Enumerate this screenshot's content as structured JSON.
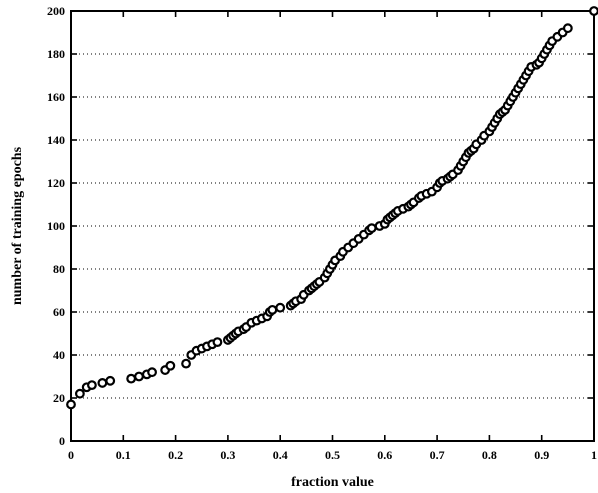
{
  "chart_data": {
    "type": "scatter",
    "title": "",
    "xlabel": "fraction value",
    "ylabel": "number of training epochs",
    "xlim": [
      0,
      1
    ],
    "ylim": [
      0,
      200
    ],
    "xticks": [
      0,
      0.1,
      0.2,
      0.3,
      0.4,
      0.5,
      0.6,
      0.7,
      0.8,
      0.9,
      1
    ],
    "xtick_labels": [
      "0",
      "0.1",
      "0.2",
      "0.3",
      "0.4",
      "0.5",
      "0.6",
      "0.7",
      "0.8",
      "0.9",
      "1"
    ],
    "yticks": [
      0,
      20,
      40,
      60,
      80,
      100,
      120,
      140,
      160,
      180,
      200
    ],
    "ytick_labels": [
      "0",
      "20",
      "40",
      "60",
      "80",
      "100",
      "120",
      "140",
      "160",
      "180",
      "200"
    ],
    "grid": "horizontal dotted",
    "marker": "open circle",
    "marker_color": "#000000",
    "x": [
      0.0,
      0.017,
      0.03,
      0.04,
      0.06,
      0.075,
      0.115,
      0.13,
      0.145,
      0.155,
      0.18,
      0.19,
      0.22,
      0.23,
      0.24,
      0.25,
      0.26,
      0.27,
      0.28,
      0.3,
      0.305,
      0.31,
      0.315,
      0.32,
      0.33,
      0.335,
      0.345,
      0.355,
      0.365,
      0.375,
      0.38,
      0.385,
      0.4,
      0.42,
      0.425,
      0.43,
      0.44,
      0.445,
      0.455,
      0.46,
      0.465,
      0.47,
      0.475,
      0.485,
      0.49,
      0.495,
      0.5,
      0.505,
      0.515,
      0.52,
      0.53,
      0.54,
      0.55,
      0.56,
      0.57,
      0.575,
      0.59,
      0.6,
      0.605,
      0.61,
      0.615,
      0.62,
      0.625,
      0.635,
      0.645,
      0.65,
      0.655,
      0.665,
      0.67,
      0.68,
      0.69,
      0.7,
      0.705,
      0.71,
      0.72,
      0.725,
      0.73,
      0.74,
      0.745,
      0.75,
      0.755,
      0.76,
      0.765,
      0.77,
      0.775,
      0.785,
      0.79,
      0.8,
      0.805,
      0.81,
      0.815,
      0.82,
      0.825,
      0.83,
      0.835,
      0.84,
      0.845,
      0.85,
      0.855,
      0.86,
      0.865,
      0.87,
      0.875,
      0.88,
      0.89,
      0.895,
      0.9,
      0.905,
      0.91,
      0.915,
      0.92,
      0.93,
      0.94,
      0.95,
      1.0
    ],
    "y": [
      17,
      22,
      25,
      26,
      27,
      28,
      29,
      30,
      31,
      32,
      33,
      35,
      36,
      40,
      42,
      43,
      44,
      45,
      46,
      47,
      48,
      49,
      50,
      51,
      52,
      53,
      55,
      56,
      57,
      58,
      60,
      61,
      62,
      63,
      64,
      65,
      66,
      68,
      70,
      71,
      72,
      73,
      74,
      76,
      78,
      80,
      82,
      84,
      86,
      88,
      90,
      92,
      94,
      96,
      98,
      99,
      100,
      101,
      103,
      104,
      105,
      106,
      107,
      108,
      109,
      110,
      111,
      113,
      114,
      115,
      116,
      118,
      120,
      121,
      122,
      123,
      124,
      126,
      128,
      130,
      132,
      134,
      135,
      136,
      138,
      140,
      142,
      144,
      146,
      148,
      150,
      152,
      153,
      154,
      156,
      158,
      160,
      162,
      164,
      166,
      168,
      170,
      172,
      174,
      175,
      176,
      178,
      180,
      182,
      184,
      186,
      188,
      190,
      192,
      200
    ]
  }
}
